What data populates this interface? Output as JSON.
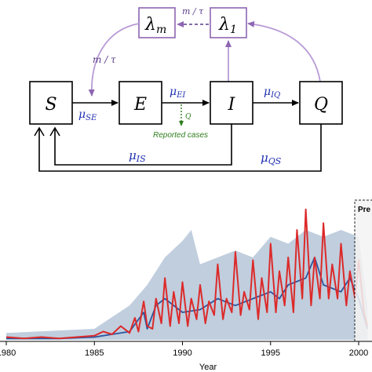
{
  "diagram": {
    "compartments": {
      "S": "S",
      "E": "E",
      "I": "I",
      "Q": "Q",
      "lambda_m": "λ",
      "lambda_m_sub": "m",
      "lambda_1": "λ",
      "lambda_1_sub": "1"
    },
    "rates": {
      "mu": "μ",
      "SE": "SE",
      "EI": "EI",
      "IQ": "IQ",
      "IS": "IS",
      "QS": "QS",
      "m_tau": "m / τ",
      "Q": "Q"
    },
    "reported_cases": "Reported cases",
    "colors": {
      "purple": "#8e66b3",
      "blue": "#1f2fb0",
      "green": "#2e7d1e"
    }
  },
  "chart_data": {
    "type": "line",
    "xlabel": "Year",
    "x_ticks": [
      "1980",
      "1985",
      "1990",
      "1995",
      "2000"
    ],
    "xlim": [
      1980,
      2001.3
    ],
    "ylim": [
      0,
      1
    ],
    "annotation": "Pre",
    "series": [
      {
        "color": "#dc2a2a",
        "x": [
          1980,
          1981,
          1982,
          1983,
          1984,
          1985,
          1985.5,
          1986,
          1986.5,
          1987,
          1987.3,
          1987.5,
          1987.8,
          1988,
          1988.3,
          1988.5,
          1988.8,
          1989,
          1989.3,
          1989.5,
          1989.8,
          1990,
          1990.3,
          1990.5,
          1990.8,
          1991,
          1991.3,
          1991.5,
          1991.8,
          1992,
          1992.3,
          1992.5,
          1992.8,
          1993,
          1993.3,
          1993.5,
          1993.8,
          1994,
          1994.3,
          1994.5,
          1994.8,
          1995,
          1995.3,
          1995.5,
          1995.8,
          1996,
          1996.3,
          1996.5,
          1996.8,
          1997,
          1997.3,
          1997.5,
          1997.8,
          1998,
          1998.3,
          1998.5,
          1998.8,
          1999,
          1999.3,
          1999.5,
          1999.8,
          2000,
          2000.3,
          2000.5
        ],
        "y": [
          0.02,
          0.01,
          0.02,
          0.01,
          0.02,
          0.03,
          0.06,
          0.04,
          0.1,
          0.05,
          0.16,
          0.06,
          0.28,
          0.1,
          0.08,
          0.3,
          0.12,
          0.45,
          0.1,
          0.35,
          0.12,
          0.42,
          0.1,
          0.3,
          0.15,
          0.4,
          0.12,
          0.28,
          0.18,
          0.55,
          0.15,
          0.3,
          0.2,
          0.64,
          0.18,
          0.35,
          0.22,
          0.58,
          0.15,
          0.45,
          0.2,
          0.7,
          0.2,
          0.5,
          0.25,
          0.6,
          0.2,
          0.8,
          0.3,
          0.95,
          0.25,
          0.6,
          0.3,
          0.85,
          0.3,
          0.55,
          0.3,
          0.7,
          0.25,
          0.5,
          0.3,
          0.58,
          0.2,
          0.1
        ]
      },
      {
        "color": "#2a56a0",
        "x": [
          1980,
          1983,
          1985,
          1986,
          1987,
          1987.8,
          1988,
          1988.5,
          1989,
          1990,
          1991,
          1992,
          1993,
          1994,
          1995,
          1995.5,
          1996,
          1997,
          1997.5,
          1998,
          1999,
          1999.5,
          2000,
          2000.5
        ],
        "y": [
          0.01,
          0.01,
          0.02,
          0.04,
          0.06,
          0.2,
          0.08,
          0.25,
          0.3,
          0.2,
          0.22,
          0.3,
          0.25,
          0.3,
          0.35,
          0.3,
          0.4,
          0.45,
          0.6,
          0.4,
          0.35,
          0.45,
          0.3,
          0.08
        ]
      },
      {
        "color": "#b5c6d8",
        "x": [
          1980,
          1985,
          1987,
          1988,
          1988.5,
          1989,
          1990,
          1990.5,
          1991,
          1992,
          1993,
          1994,
          1995,
          1996,
          1997,
          1998,
          1999,
          2000,
          2000.5
        ],
        "y": [
          0.05,
          0.08,
          0.25,
          0.4,
          0.5,
          0.6,
          0.72,
          0.8,
          0.55,
          0.6,
          0.65,
          0.6,
          0.75,
          0.7,
          0.8,
          0.75,
          0.8,
          0.75,
          0.25
        ]
      }
    ]
  }
}
